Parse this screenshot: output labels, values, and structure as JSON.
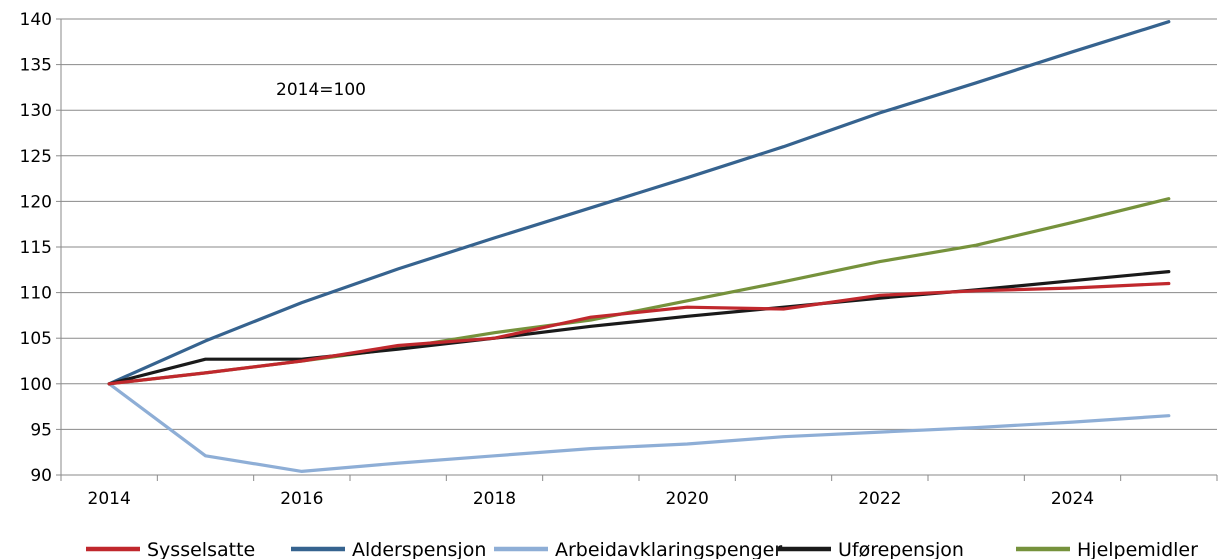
{
  "chart_data": {
    "type": "line",
    "annotation": "2014=100",
    "x": [
      2014,
      2015,
      2016,
      2017,
      2018,
      2019,
      2020,
      2021,
      2022,
      2023,
      2024,
      2025
    ],
    "xlim": [
      2013.5,
      2025.5
    ],
    "ylim": [
      90,
      140
    ],
    "x_ticks": [
      2014,
      2016,
      2018,
      2020,
      2022,
      2024
    ],
    "y_ticks": [
      90,
      95,
      100,
      105,
      110,
      115,
      120,
      125,
      130,
      135,
      140
    ],
    "grid": "horizontal",
    "legend_position": "bottom",
    "series": [
      {
        "name": "Sysselsatte",
        "color": "#c0282d",
        "values": [
          100,
          101.2,
          102.5,
          104.2,
          105.0,
          107.3,
          108.4,
          108.2,
          109.7,
          110.2,
          110.5,
          111.0
        ]
      },
      {
        "name": "Alderspensjon",
        "color": "#36638f",
        "values": [
          100,
          104.7,
          108.9,
          112.6,
          116.0,
          119.3,
          122.6,
          126.0,
          129.7,
          133.0,
          136.4,
          139.7
        ]
      },
      {
        "name": "Arbeidavklaringspenger",
        "color": "#8eaed6",
        "values": [
          100,
          92.1,
          90.4,
          91.3,
          92.1,
          92.9,
          93.4,
          94.2,
          94.7,
          95.2,
          95.8,
          96.5
        ]
      },
      {
        "name": "Uførepensjon",
        "color": "#1a1a1a",
        "values": [
          100,
          102.7,
          102.7,
          103.8,
          105.0,
          106.3,
          107.4,
          108.4,
          109.4,
          110.3,
          111.3,
          112.3
        ]
      },
      {
        "name": "Hjelpemidler",
        "color": "#76923c",
        "values": [
          100,
          101.2,
          102.5,
          103.9,
          105.6,
          107.0,
          109.1,
          111.2,
          113.4,
          115.2,
          117.7,
          120.3
        ]
      }
    ]
  }
}
